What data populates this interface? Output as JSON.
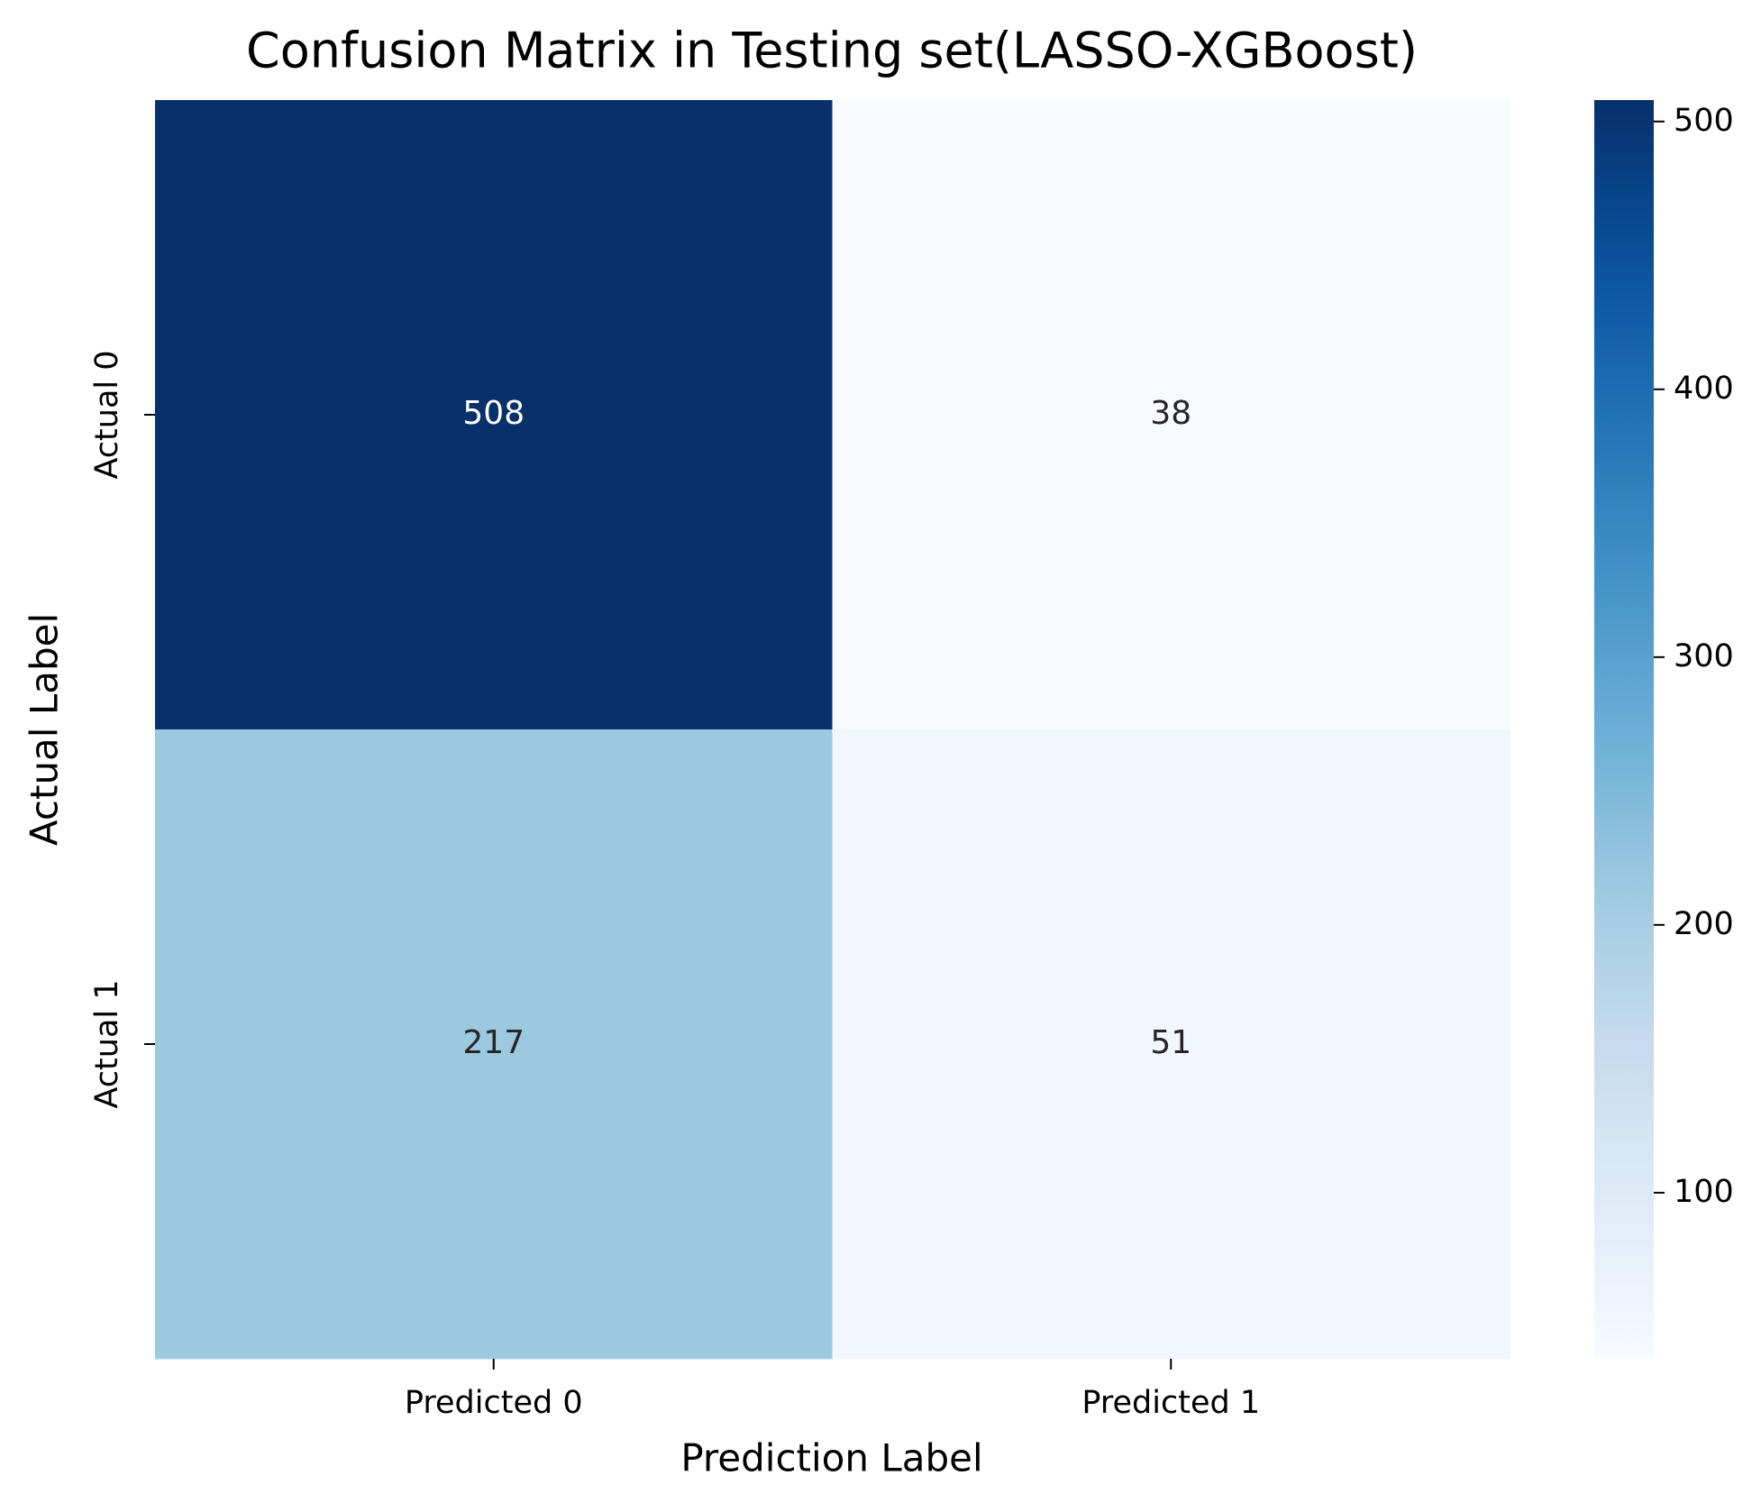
{
  "chart_data": {
    "type": "heatmap",
    "title": "Confusion Matrix in Testing set(LASSO-XGBoost)",
    "xlabel": "Prediction Label",
    "ylabel": "Actual Label",
    "x_categories": [
      "Predicted 0",
      "Predicted 1"
    ],
    "y_categories": [
      "Actual 0",
      "Actual 1"
    ],
    "values": [
      [
        508,
        38
      ],
      [
        217,
        51
      ]
    ],
    "colormap": "Blues",
    "colorbar_lim": [
      38,
      508
    ],
    "colorbar_ticks": [
      100,
      200,
      300,
      400,
      500
    ]
  }
}
